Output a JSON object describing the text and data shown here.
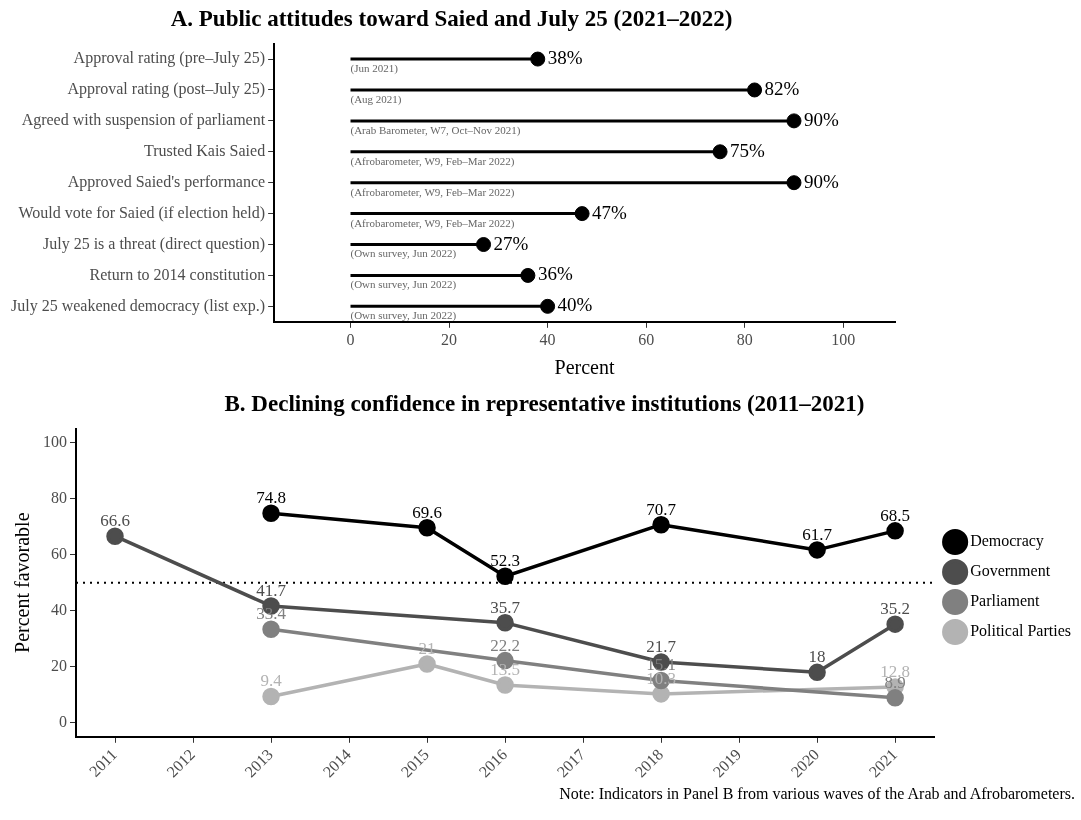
{
  "chart_data": [
    {
      "type": "lollipop",
      "orientation": "horizontal",
      "title": "A. Public attitudes toward Saied and July 25 (2021–2022)",
      "xlabel": "Percent",
      "categories": [
        "Approval rating (pre–July 25)",
        "Approval rating (post–July 25)",
        "Agreed with suspension of parliament",
        "Trusted Kais Saied",
        "Approved Saied's performance",
        "Would vote for Saied (if election held)",
        "July 25 is a threat (direct question)",
        "Return to 2014 constitution",
        "July 25 weakened democracy (list exp.)"
      ],
      "values": [
        38,
        82,
        90,
        75,
        90,
        47,
        27,
        36,
        40
      ],
      "value_labels": [
        "38%",
        "82%",
        "90%",
        "75%",
        "90%",
        "47%",
        "27%",
        "36%",
        "40%"
      ],
      "color": "#000000",
      "marker": "circle",
      "grid": false,
      "legend": false,
      "xlim": [
        -15.5,
        110.5
      ],
      "xticks": [
        0,
        20,
        40,
        60,
        80,
        100
      ],
      "annotations": [
        "(Jun 2021)",
        "(Aug 2021)",
        "(Arab Barometer, W7, Oct–Nov 2021)",
        "(Afrobarometer, W9, Feb–Mar 2022)",
        "(Afrobarometer, W9, Feb–Mar 2022)",
        "(Afrobarometer, W9, Feb–Mar 2022)",
        "(Own survey, Jun 2022)",
        "(Own survey, Jun 2022)",
        "(Own survey, Jun 2022)"
      ]
    },
    {
      "type": "line",
      "title": "B. Declining confidence in representative institutions (2011–2021)",
      "ylabel": "Percent favorable",
      "xlim": [
        2010.5,
        2021.5
      ],
      "xticks": [
        2011,
        2012,
        2013,
        2014,
        2015,
        2016,
        2017,
        2018,
        2019,
        2020,
        2021
      ],
      "ylim": [
        -5,
        105
      ],
      "yticks": [
        0,
        20,
        40,
        60,
        80,
        100
      ],
      "grid": false,
      "legend": "right",
      "marker": "circle",
      "line_style": "solid",
      "data_labels": true,
      "ref_lines": [
        {
          "axis": "y",
          "value": 50,
          "line_style": "dotted",
          "color": "#000000"
        }
      ],
      "series": [
        {
          "name": "Democracy",
          "color": "#000000",
          "x": [
            2013,
            2015,
            2016,
            2018,
            2020,
            2021
          ],
          "values": [
            74.8,
            69.6,
            52.3,
            70.7,
            61.7,
            68.5
          ]
        },
        {
          "name": "Government",
          "color": "#4d4d4d",
          "x": [
            2011,
            2013,
            2016,
            2018,
            2020,
            2021
          ],
          "values": [
            66.6,
            41.7,
            35.7,
            21.7,
            18,
            35.2
          ]
        },
        {
          "name": "Parliament",
          "color": "#808080",
          "x": [
            2013,
            2016,
            2018,
            2021
          ],
          "values": [
            33.4,
            22.2,
            15.1,
            8.9
          ]
        },
        {
          "name": "Political Parties",
          "color": "#b3b3b3",
          "x": [
            2013,
            2015,
            2016,
            2018,
            2021
          ],
          "values": [
            9.4,
            21,
            13.5,
            10.3,
            12.8
          ]
        }
      ],
      "annotations": [
        "Note: Indicators in Panel B from various waves of the Arab and Afrobarometers."
      ]
    }
  ]
}
